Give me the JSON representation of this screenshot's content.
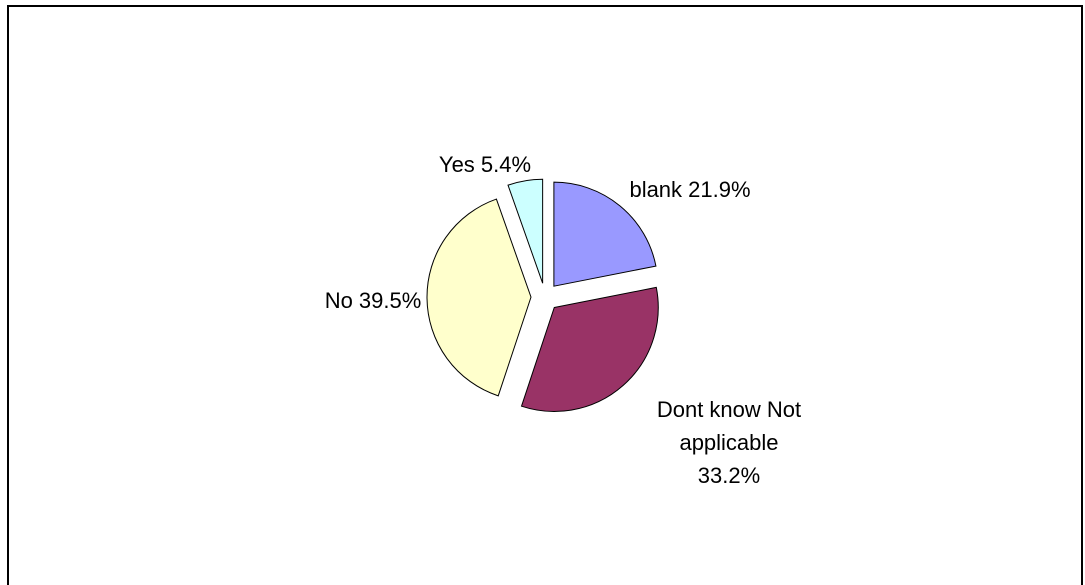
{
  "chart_data": {
    "type": "pie",
    "title": "",
    "legend": "none",
    "slices": [
      {
        "label": [
          "blank 21.9%"
        ],
        "value": 21.9,
        "color": "#9999FF"
      },
      {
        "label": [
          "Dont know   Not",
          "applicable",
          "33.2%"
        ],
        "value": 33.2,
        "color": "#993366"
      },
      {
        "label": [
          "No 39.5%"
        ],
        "value": 39.5,
        "color": "#FFFFCC"
      },
      {
        "label": [
          "Yes 5.4%"
        ],
        "value": 5.4,
        "color": "#CCFFFF"
      }
    ]
  }
}
